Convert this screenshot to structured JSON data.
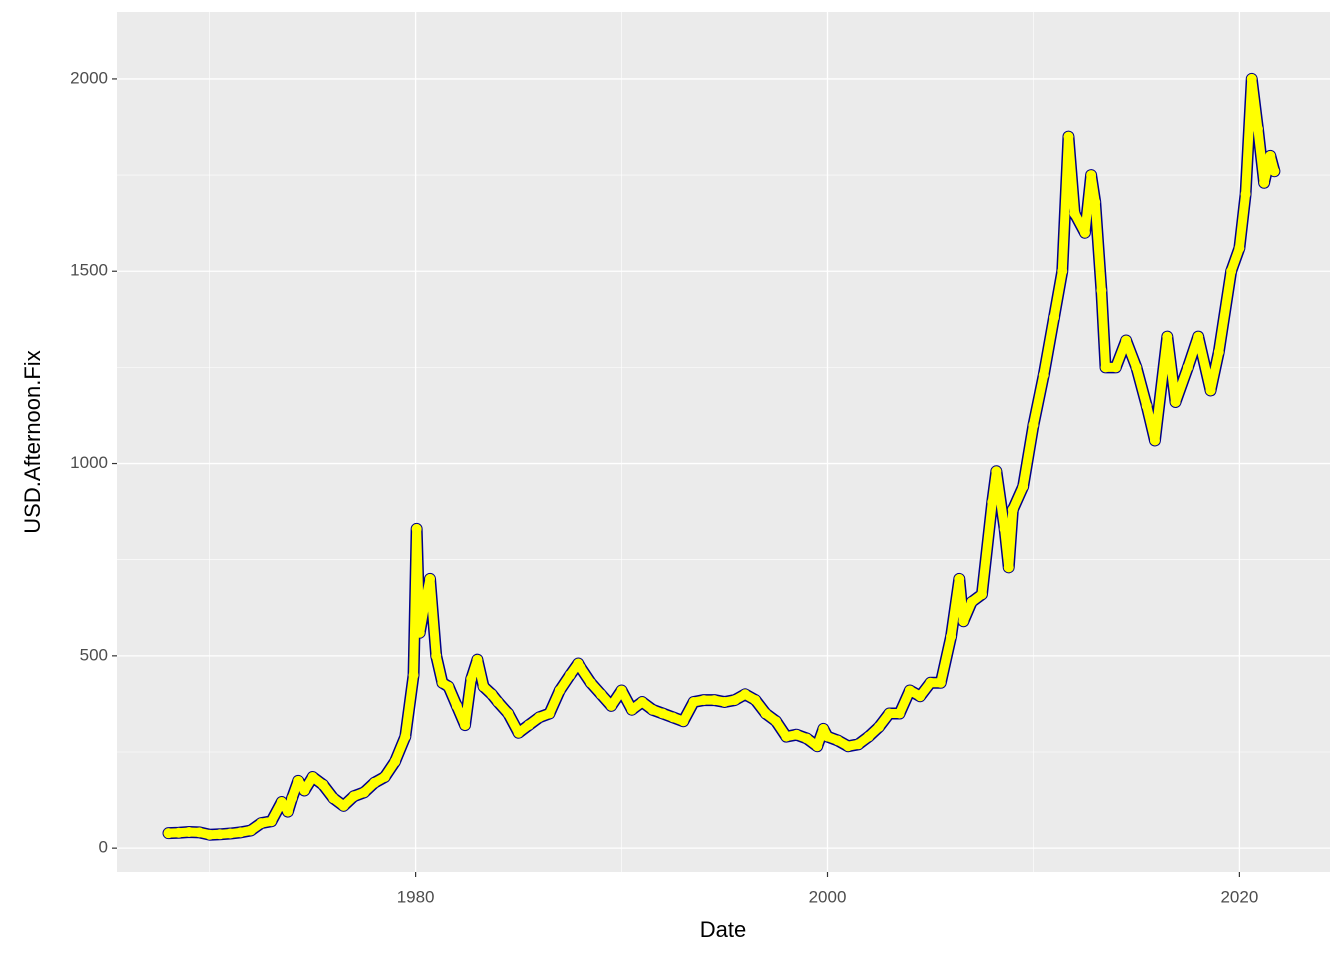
{
  "chart_data": {
    "type": "line",
    "x_label": "Date",
    "y_label": "USD.Afternoon.Fix",
    "x": [
      1968.0,
      1968.5,
      1969.0,
      1969.5,
      1970.0,
      1970.5,
      1971.0,
      1971.5,
      1972.0,
      1972.5,
      1973.0,
      1973.5,
      1973.8,
      1974.0,
      1974.3,
      1974.6,
      1975.0,
      1975.5,
      1976.0,
      1976.5,
      1977.0,
      1977.5,
      1978.0,
      1978.5,
      1979.0,
      1979.5,
      1979.9,
      1980.05,
      1980.2,
      1980.5,
      1980.7,
      1981.0,
      1981.3,
      1981.6,
      1982.0,
      1982.4,
      1982.7,
      1983.0,
      1983.3,
      1983.7,
      1984.0,
      1984.5,
      1985.0,
      1985.5,
      1986.0,
      1986.5,
      1987.0,
      1987.5,
      1987.9,
      1988.0,
      1988.5,
      1989.0,
      1989.5,
      1990.0,
      1990.5,
      1991.0,
      1991.5,
      1992.0,
      1992.5,
      1993.0,
      1993.5,
      1994.0,
      1994.5,
      1995.0,
      1995.5,
      1996.0,
      1996.5,
      1997.0,
      1997.5,
      1998.0,
      1998.5,
      1999.0,
      1999.5,
      1999.8,
      2000.0,
      2000.5,
      2001.0,
      2001.5,
      2002.0,
      2002.5,
      2003.0,
      2003.5,
      2004.0,
      2004.5,
      2005.0,
      2005.5,
      2006.0,
      2006.4,
      2006.6,
      2007.0,
      2007.5,
      2008.0,
      2008.2,
      2008.6,
      2008.8,
      2009.0,
      2009.5,
      2010.0,
      2010.5,
      2011.0,
      2011.4,
      2011.7,
      2012.0,
      2012.5,
      2012.8,
      2013.0,
      2013.3,
      2013.5,
      2014.0,
      2014.5,
      2015.0,
      2015.5,
      2015.9,
      2016.5,
      2016.9,
      2017.5,
      2018.0,
      2018.6,
      2019.0,
      2019.6,
      2020.0,
      2020.3,
      2020.6,
      2020.9,
      2021.2,
      2021.5,
      2021.7
    ],
    "values": [
      39,
      40,
      42,
      41,
      35,
      36,
      38,
      41,
      46,
      65,
      70,
      120,
      95,
      130,
      175,
      150,
      185,
      165,
      130,
      110,
      135,
      145,
      170,
      185,
      225,
      290,
      450,
      830,
      560,
      650,
      700,
      500,
      430,
      420,
      370,
      320,
      440,
      490,
      420,
      400,
      380,
      350,
      300,
      320,
      340,
      350,
      410,
      450,
      480,
      470,
      430,
      400,
      370,
      410,
      360,
      380,
      360,
      350,
      340,
      330,
      380,
      385,
      385,
      380,
      385,
      400,
      385,
      350,
      330,
      290,
      295,
      285,
      265,
      310,
      290,
      280,
      265,
      270,
      290,
      315,
      350,
      350,
      410,
      395,
      430,
      430,
      550,
      700,
      590,
      640,
      660,
      900,
      980,
      830,
      730,
      880,
      940,
      1100,
      1230,
      1380,
      1500,
      1850,
      1650,
      1600,
      1750,
      1680,
      1450,
      1250,
      1250,
      1320,
      1250,
      1150,
      1060,
      1330,
      1160,
      1250,
      1330,
      1190,
      1290,
      1500,
      1560,
      1700,
      2000,
      1870,
      1730,
      1800,
      1760
    ],
    "color": "#FFFF00",
    "outline_color": "#00008B",
    "xlim": [
      1965.5,
      2024.4
    ],
    "ylim": [
      -62,
      2174
    ],
    "xticks": [
      1980,
      2000,
      2020
    ],
    "xminor": [
      1970,
      1990,
      2010
    ],
    "yticks": [
      0,
      500,
      1000,
      1500,
      2000
    ],
    "yminor": [
      250,
      750,
      1250,
      1750
    ],
    "grid": true
  }
}
